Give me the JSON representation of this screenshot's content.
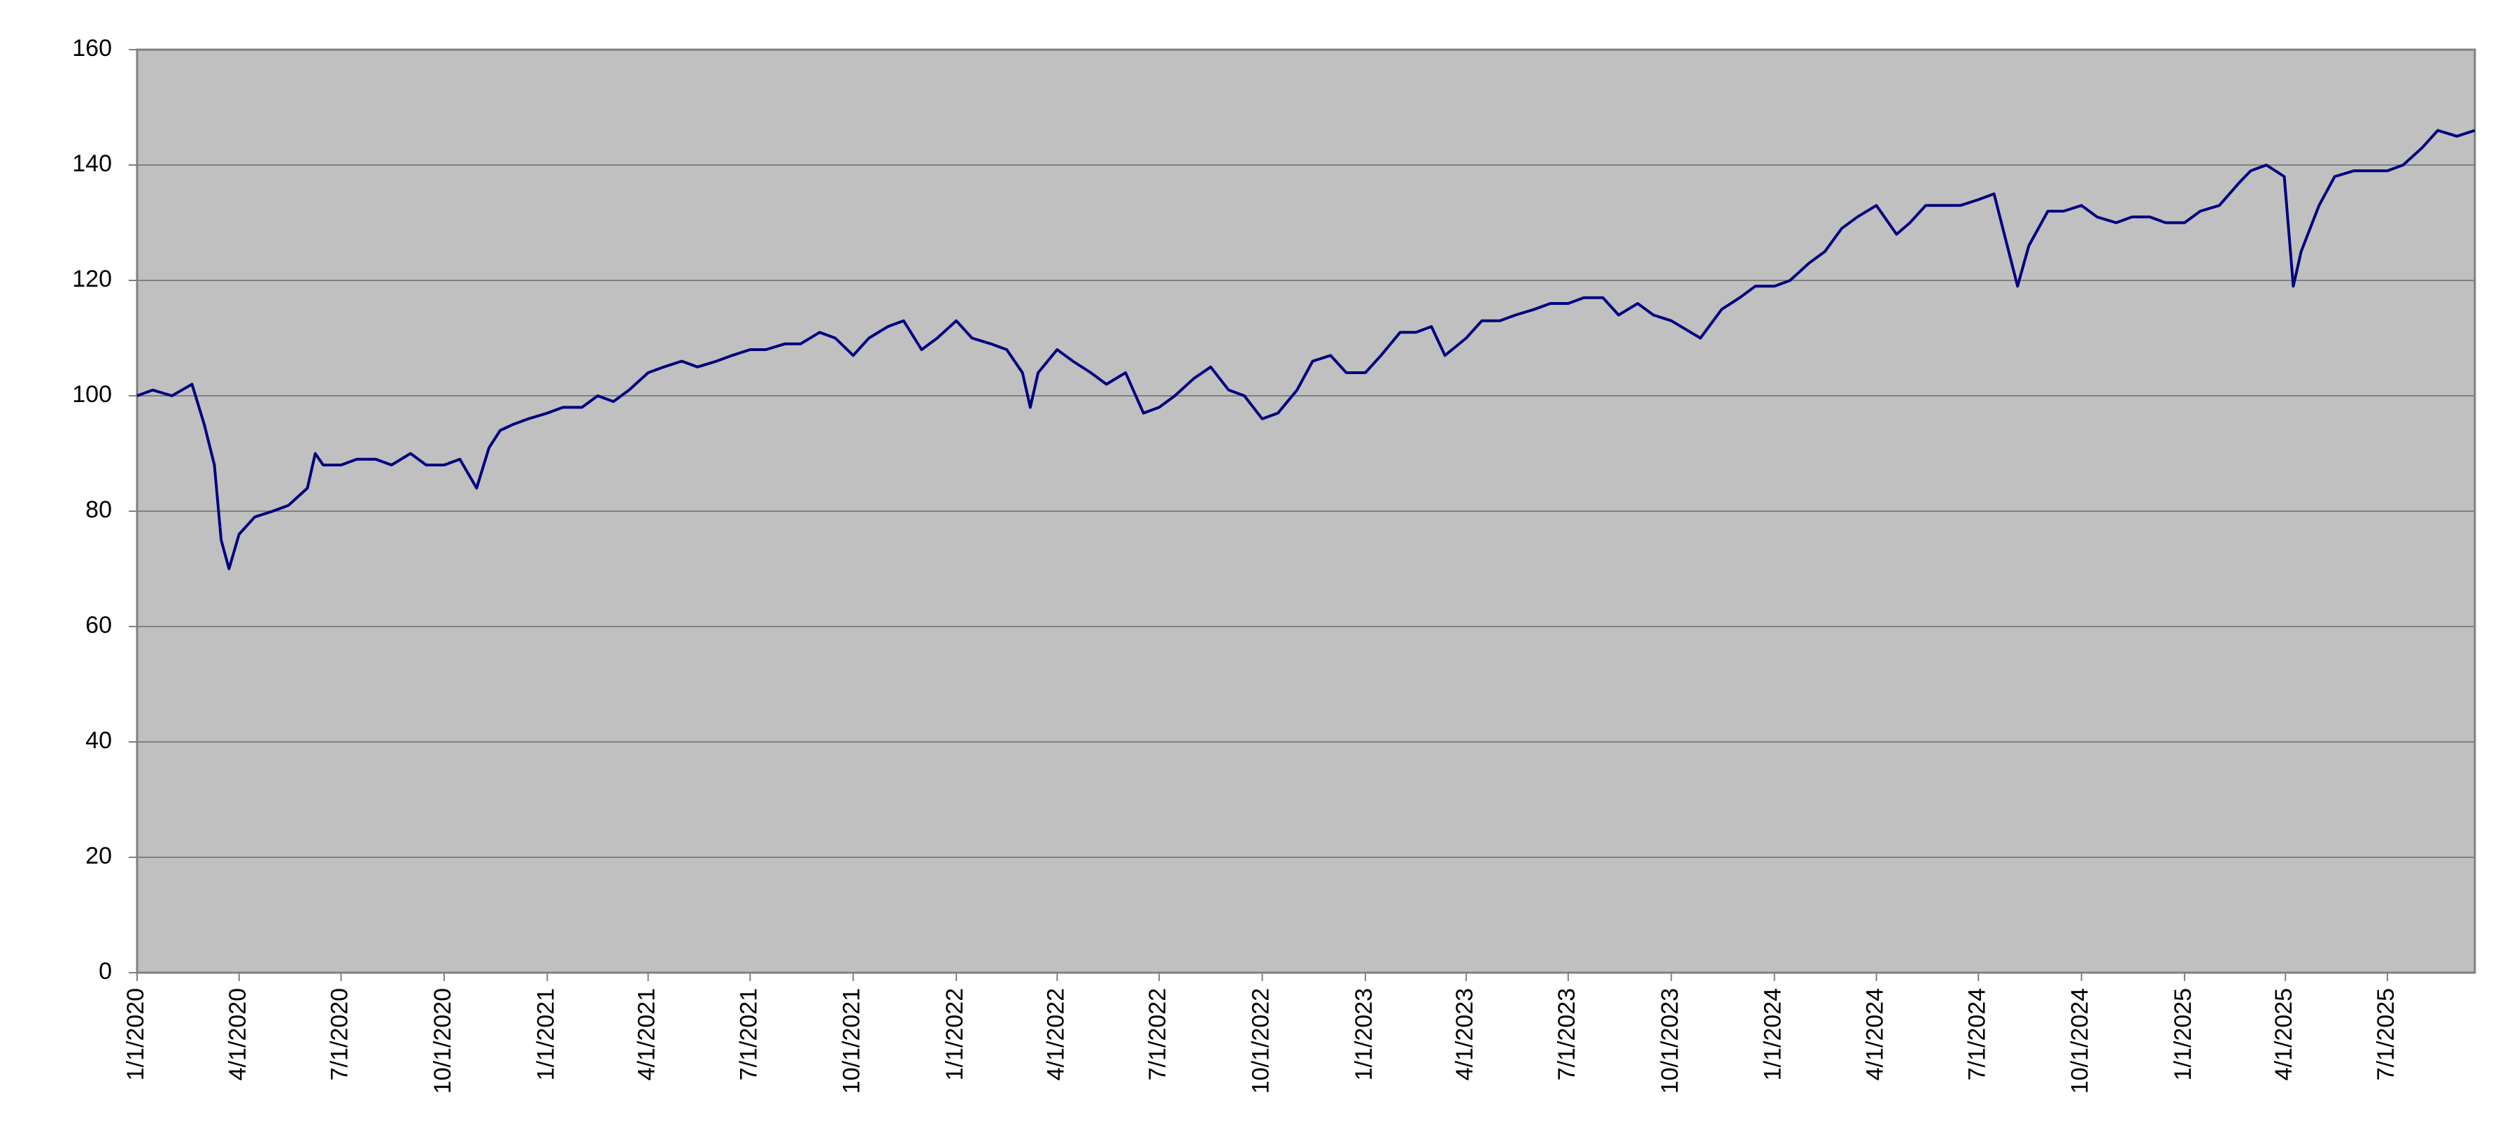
{
  "chart_data": {
    "type": "line",
    "x": [
      "1/1/2020",
      "1/15/2020",
      "2/1/2020",
      "2/19/2020",
      "3/1/2020",
      "3/10/2020",
      "3/16/2020",
      "3/23/2020",
      "4/1/2020",
      "4/15/2020",
      "5/1/2020",
      "5/15/2020",
      "6/1/2020",
      "6/8/2020",
      "6/15/2020",
      "7/1/2020",
      "7/15/2020",
      "8/1/2020",
      "8/15/2020",
      "9/1/2020",
      "9/15/2020",
      "10/1/2020",
      "10/15/2020",
      "10/30/2020",
      "11/10/2020",
      "11/20/2020",
      "12/1/2020",
      "12/15/2020",
      "1/1/2021",
      "1/15/2021",
      "2/1/2021",
      "2/15/2021",
      "3/1/2021",
      "3/15/2021",
      "4/1/2021",
      "4/15/2021",
      "5/1/2021",
      "5/15/2021",
      "6/1/2021",
      "6/15/2021",
      "7/1/2021",
      "7/15/2021",
      "8/1/2021",
      "8/15/2021",
      "9/1/2021",
      "9/15/2021",
      "10/1/2021",
      "10/15/2021",
      "11/1/2021",
      "11/15/2021",
      "12/1/2021",
      "12/15/2021",
      "1/1/2022",
      "1/15/2022",
      "2/1/2022",
      "2/15/2022",
      "3/1/2022",
      "3/8/2022",
      "3/15/2022",
      "4/1/2022",
      "4/15/2022",
      "5/1/2022",
      "5/15/2022",
      "6/1/2022",
      "6/17/2022",
      "7/1/2022",
      "7/15/2022",
      "8/1/2022",
      "8/16/2022",
      "9/1/2022",
      "9/15/2022",
      "10/1/2022",
      "10/15/2022",
      "11/1/2022",
      "11/15/2022",
      "12/1/2022",
      "12/15/2022",
      "1/1/2023",
      "1/15/2023",
      "2/1/2023",
      "2/15/2023",
      "3/1/2023",
      "3/13/2023",
      "4/1/2023",
      "4/15/2023",
      "5/1/2023",
      "5/15/2023",
      "6/1/2023",
      "6/15/2023",
      "7/1/2023",
      "7/15/2023",
      "8/1/2023",
      "8/15/2023",
      "9/1/2023",
      "9/15/2023",
      "10/1/2023",
      "10/27/2023",
      "11/15/2023",
      "12/1/2023",
      "12/15/2023",
      "1/1/2024",
      "1/15/2024",
      "2/1/2024",
      "2/15/2024",
      "3/1/2024",
      "3/15/2024",
      "4/1/2024",
      "4/19/2024",
      "5/1/2024",
      "5/15/2024",
      "6/1/2024",
      "6/15/2024",
      "7/1/2024",
      "7/15/2024",
      "8/5/2024",
      "8/15/2024",
      "9/1/2024",
      "9/15/2024",
      "10/1/2024",
      "10/15/2024",
      "11/1/2024",
      "11/15/2024",
      "12/1/2024",
      "12/15/2024",
      "1/1/2025",
      "1/15/2025",
      "2/1/2025",
      "2/19/2025",
      "3/1/2025",
      "3/15/2025",
      "3/31/2025",
      "4/8/2025",
      "4/15/2025",
      "5/1/2025",
      "5/15/2025",
      "6/1/2025",
      "6/15/2025",
      "7/1/2025",
      "7/15/2025",
      "8/1/2025",
      "8/15/2025",
      "9/1/2025",
      "9/17/2025"
    ],
    "series": [
      {
        "color": "#000080",
        "values": [
          100,
          101,
          100,
          102,
          95,
          88,
          75,
          70,
          76,
          79,
          80,
          81,
          84,
          90,
          88,
          88,
          89,
          89,
          88,
          90,
          88,
          88,
          89,
          84,
          91,
          94,
          95,
          96,
          97,
          98,
          98,
          100,
          99,
          101,
          104,
          105,
          106,
          105,
          106,
          107,
          108,
          108,
          109,
          109,
          111,
          110,
          107,
          110,
          112,
          113,
          108,
          110,
          113,
          110,
          109,
          108,
          104,
          98,
          104,
          108,
          106,
          104,
          102,
          104,
          97,
          98,
          100,
          103,
          105,
          101,
          100,
          96,
          97,
          101,
          106,
          107,
          104,
          104,
          107,
          111,
          111,
          112,
          107,
          110,
          113,
          113,
          114,
          115,
          116,
          116,
          117,
          117,
          114,
          116,
          114,
          113,
          110,
          115,
          117,
          119,
          119,
          120,
          123,
          125,
          129,
          131,
          133,
          128,
          130,
          133,
          133,
          133,
          134,
          135,
          119,
          126,
          132,
          132,
          133,
          131,
          130,
          131,
          131,
          130,
          130,
          132,
          133,
          137,
          139,
          140,
          138,
          119,
          125,
          133,
          138,
          139,
          139,
          139,
          140,
          143,
          146,
          145,
          146
        ]
      }
    ],
    "xlim": [
      "1/1/2020",
      "9/17/2025"
    ],
    "xticks": [
      "1/1/2020",
      "4/1/2020",
      "7/1/2020",
      "10/1/2020",
      "1/1/2021",
      "4/1/2021",
      "7/1/2021",
      "10/1/2021",
      "1/1/2022",
      "4/1/2022",
      "7/1/2022",
      "10/1/2022",
      "1/1/2023",
      "4/1/2023",
      "7/1/2023",
      "10/1/2023",
      "1/1/2024",
      "4/1/2024",
      "7/1/2024",
      "10/1/2024",
      "1/1/2025",
      "4/1/2025",
      "7/1/2025"
    ],
    "ylim": [
      0,
      160
    ],
    "yticks": [
      0,
      20,
      40,
      60,
      80,
      100,
      120,
      140,
      160
    ],
    "grid": true
  }
}
